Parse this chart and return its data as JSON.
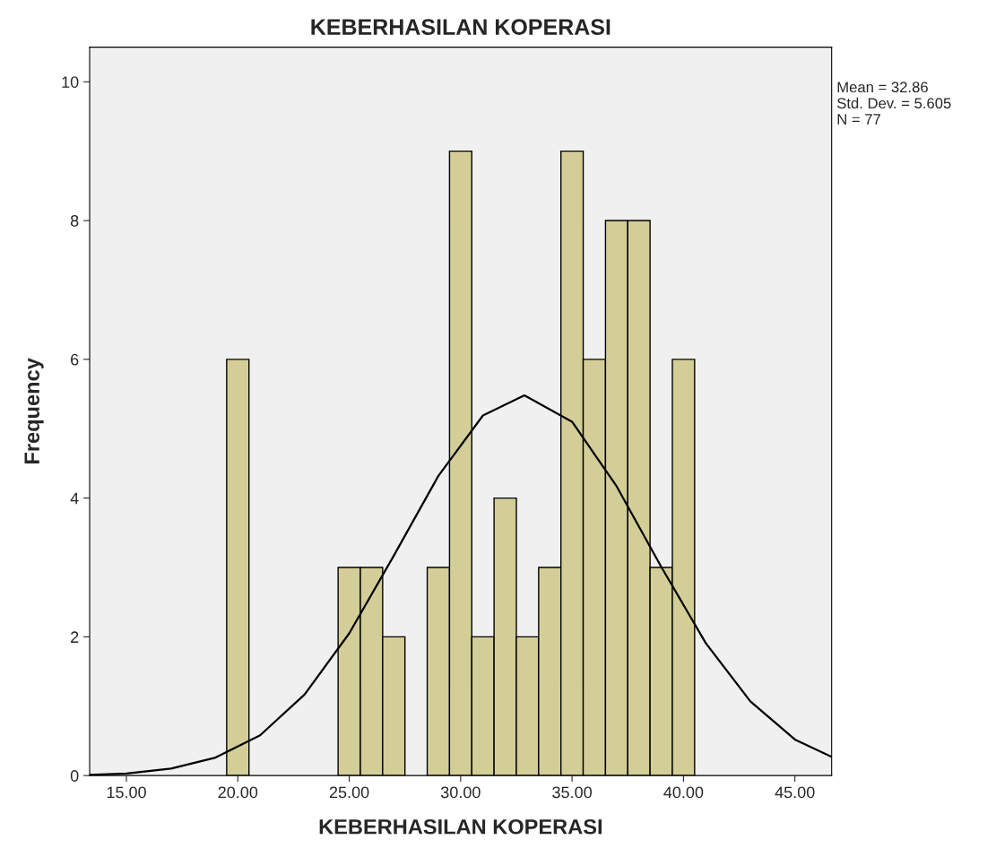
{
  "chart_data": {
    "type": "histogram",
    "title": "KEBERHASILAN KOPERASI",
    "xlabel": "KEBERHASILAN KOPERASI",
    "ylabel": "Frequency",
    "bins": [
      19.5,
      20.5,
      21.5,
      22.5,
      23.5,
      24.5,
      25.5,
      26.5,
      27.5,
      28.5,
      29.5,
      30.5,
      31.5,
      32.5,
      33.5,
      34.5,
      35.5,
      36.5,
      37.5,
      38.5,
      39.5,
      40.5
    ],
    "values": [
      6,
      0,
      0,
      0,
      0,
      3,
      3,
      2,
      0,
      3,
      9,
      2,
      4,
      2,
      3,
      9,
      6,
      8,
      8,
      3,
      6
    ],
    "color": "#d3ce97",
    "series": [
      {
        "type": "line",
        "color": "#000000",
        "x": [
          13.35,
          15,
          17,
          19,
          21,
          23,
          25,
          27,
          29,
          31,
          32.86,
          35,
          37,
          39,
          41,
          43,
          45,
          46.65
        ],
        "values": [
          0.01,
          0.03,
          0.1,
          0.26,
          0.58,
          1.17,
          2.05,
          3.17,
          4.32,
          5.19,
          5.48,
          5.1,
          4.17,
          3.01,
          1.91,
          1.07,
          0.52,
          0.27
        ]
      }
    ],
    "marker": "none",
    "line_style": "solid",
    "xlim": [
      13.35,
      46.65
    ],
    "ylim": [
      0,
      10.5
    ],
    "xticks": [
      {
        "value": 15,
        "label": "15.00"
      },
      {
        "value": 20,
        "label": "20.00"
      },
      {
        "value": 25,
        "label": "25.00"
      },
      {
        "value": 30,
        "label": "30.00"
      },
      {
        "value": 35,
        "label": "35.00"
      },
      {
        "value": 40,
        "label": "40.00"
      },
      {
        "value": 45,
        "label": "45.00"
      }
    ],
    "yticks": [
      0,
      2,
      4,
      6,
      8,
      10
    ],
    "grid": false,
    "annotations": [
      "Mean = 32.86\nStd. Dev. = 5.605\nN = 77"
    ]
  }
}
